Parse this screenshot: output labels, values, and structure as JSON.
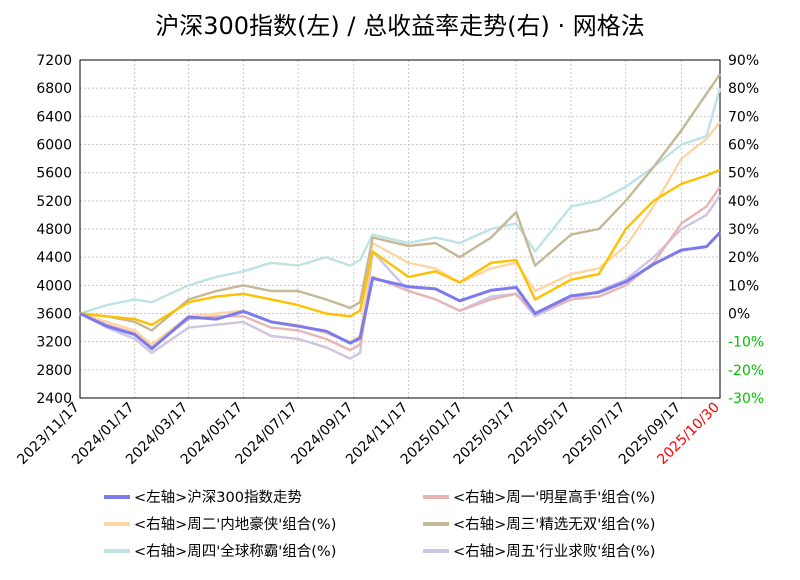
{
  "chart_data": {
    "type": "line",
    "title": "沪深300指数(左)  /  总收益率走势(右) · 网格法",
    "x_tick_labels": [
      "2023/11/17",
      "2024/01/17",
      "2024/03/17",
      "2024/05/17",
      "2024/07/17",
      "2024/09/17",
      "2024/11/17",
      "2025/01/17",
      "2025/03/17",
      "2025/05/17",
      "2025/07/17",
      "2025/09/17",
      "2025/10/30"
    ],
    "x_range": [
      "2023/11/17",
      "2025/10/30"
    ],
    "y_left": {
      "ticks": [
        "7200",
        "6800",
        "6400",
        "6000",
        "5600",
        "5200",
        "4800",
        "4400",
        "4000",
        "3600",
        "3200",
        "2800",
        "2400"
      ],
      "range": [
        2400,
        7200
      ]
    },
    "y_right": {
      "ticks": [
        "90%",
        "80%",
        "70%",
        "60%",
        "50%",
        "40%",
        "30%",
        "20%",
        "10%",
        "0%",
        "-10%",
        "-20%",
        "-30%"
      ],
      "range": [
        -30,
        90
      ],
      "negative_color": "#00c000"
    },
    "grid": "dotted",
    "last_date_color": "#ff0000",
    "series": [
      {
        "name": "<左轴>沪深300指数走势",
        "axis": "left",
        "color": "#7b7bef",
        "points": [
          [
            "2023/11/17",
            3600
          ],
          [
            "2023/12/17",
            3420
          ],
          [
            "2024/01/17",
            3300
          ],
          [
            "2024/02/05",
            3100
          ],
          [
            "2024/03/17",
            3550
          ],
          [
            "2024/04/17",
            3520
          ],
          [
            "2024/05/17",
            3630
          ],
          [
            "2024/06/17",
            3480
          ],
          [
            "2024/07/17",
            3420
          ],
          [
            "2024/08/17",
            3350
          ],
          [
            "2024/09/13",
            3180
          ],
          [
            "2024/09/24",
            3250
          ],
          [
            "2024/10/08",
            4100
          ],
          [
            "2024/11/17",
            3980
          ],
          [
            "2024/12/17",
            3950
          ],
          [
            "2025/01/13",
            3780
          ],
          [
            "2025/02/17",
            3930
          ],
          [
            "2025/03/17",
            3970
          ],
          [
            "2025/04/07",
            3600
          ],
          [
            "2025/05/17",
            3850
          ],
          [
            "2025/06/17",
            3900
          ],
          [
            "2025/07/17",
            4050
          ],
          [
            "2025/08/17",
            4300
          ],
          [
            "2025/09/17",
            4500
          ],
          [
            "2025/10/15",
            4550
          ],
          [
            "2025/10/30",
            4750
          ]
        ]
      },
      {
        "name": "<右轴>周一'明星高手'组合(%)",
        "axis": "right",
        "color": "#e8b4b4",
        "points": [
          [
            "2023/11/17",
            0
          ],
          [
            "2023/12/17",
            -4
          ],
          [
            "2024/01/17",
            -7
          ],
          [
            "2024/02/05",
            -12
          ],
          [
            "2024/03/17",
            -2
          ],
          [
            "2024/04/17",
            -1
          ],
          [
            "2024/05/17",
            -1
          ],
          [
            "2024/06/17",
            -5
          ],
          [
            "2024/07/17",
            -6
          ],
          [
            "2024/08/17",
            -9
          ],
          [
            "2024/09/13",
            -13
          ],
          [
            "2024/09/24",
            -11
          ],
          [
            "2024/10/08",
            13
          ],
          [
            "2024/11/17",
            8
          ],
          [
            "2024/12/17",
            5
          ],
          [
            "2025/01/13",
            1
          ],
          [
            "2025/02/17",
            5
          ],
          [
            "2025/03/17",
            7
          ],
          [
            "2025/04/07",
            0
          ],
          [
            "2025/05/17",
            5
          ],
          [
            "2025/06/17",
            6
          ],
          [
            "2025/07/17",
            10
          ],
          [
            "2025/08/17",
            18
          ],
          [
            "2025/09/17",
            32
          ],
          [
            "2025/10/15",
            38
          ],
          [
            "2025/10/30",
            45
          ]
        ]
      },
      {
        "name": "<右轴>周二'内地豪侠'组合(%)",
        "axis": "right",
        "color": "#fcd6a4",
        "points": [
          [
            "2023/11/17",
            0
          ],
          [
            "2023/12/17",
            -3
          ],
          [
            "2024/01/17",
            -6
          ],
          [
            "2024/02/05",
            -11
          ],
          [
            "2024/03/17",
            -1
          ],
          [
            "2024/04/17",
            0
          ],
          [
            "2024/05/17",
            1
          ],
          [
            "2024/06/17",
            -3
          ],
          [
            "2024/07/17",
            -4
          ],
          [
            "2024/08/17",
            -7
          ],
          [
            "2024/09/13",
            -10
          ],
          [
            "2024/09/24",
            -8
          ],
          [
            "2024/10/08",
            25
          ],
          [
            "2024/11/17",
            18
          ],
          [
            "2024/12/17",
            16
          ],
          [
            "2025/01/13",
            11
          ],
          [
            "2025/02/17",
            16
          ],
          [
            "2025/03/17",
            18
          ],
          [
            "2025/04/07",
            8
          ],
          [
            "2025/05/17",
            14
          ],
          [
            "2025/06/17",
            16
          ],
          [
            "2025/07/17",
            24
          ],
          [
            "2025/08/17",
            38
          ],
          [
            "2025/09/17",
            55
          ],
          [
            "2025/10/15",
            62
          ],
          [
            "2025/10/30",
            68
          ]
        ]
      },
      {
        "name": "<右轴>周三'精选无双'组合(%)",
        "axis": "right",
        "color": "#c4b896",
        "points": [
          [
            "2023/11/17",
            0
          ],
          [
            "2023/12/17",
            -1
          ],
          [
            "2024/01/17",
            -3
          ],
          [
            "2024/02/05",
            -6
          ],
          [
            "2024/03/17",
            5
          ],
          [
            "2024/04/17",
            8
          ],
          [
            "2024/05/17",
            10
          ],
          [
            "2024/06/17",
            8
          ],
          [
            "2024/07/17",
            8
          ],
          [
            "2024/08/17",
            5
          ],
          [
            "2024/09/13",
            2
          ],
          [
            "2024/09/24",
            4
          ],
          [
            "2024/10/08",
            27
          ],
          [
            "2024/11/17",
            24
          ],
          [
            "2024/12/17",
            25
          ],
          [
            "2025/01/13",
            20
          ],
          [
            "2025/02/17",
            27
          ],
          [
            "2025/03/17",
            36
          ],
          [
            "2025/04/07",
            17
          ],
          [
            "2025/05/17",
            28
          ],
          [
            "2025/06/17",
            30
          ],
          [
            "2025/07/17",
            40
          ],
          [
            "2025/08/17",
            52
          ],
          [
            "2025/09/17",
            65
          ],
          [
            "2025/10/15",
            78
          ],
          [
            "2025/10/30",
            85
          ]
        ]
      },
      {
        "name": "<右轴>周四'全球称霸'组合(%)",
        "axis": "right",
        "color": "#bde3e5",
        "points": [
          [
            "2023/11/17",
            0
          ],
          [
            "2023/12/17",
            3
          ],
          [
            "2024/01/17",
            5
          ],
          [
            "2024/02/05",
            4
          ],
          [
            "2024/03/17",
            10
          ],
          [
            "2024/04/17",
            13
          ],
          [
            "2024/05/17",
            15
          ],
          [
            "2024/06/17",
            18
          ],
          [
            "2024/07/17",
            17
          ],
          [
            "2024/08/17",
            20
          ],
          [
            "2024/09/13",
            17
          ],
          [
            "2024/09/24",
            19
          ],
          [
            "2024/10/08",
            28
          ],
          [
            "2024/11/17",
            25
          ],
          [
            "2024/12/17",
            27
          ],
          [
            "2025/01/13",
            25
          ],
          [
            "2025/02/17",
            30
          ],
          [
            "2025/03/17",
            32
          ],
          [
            "2025/04/07",
            22
          ],
          [
            "2025/05/17",
            38
          ],
          [
            "2025/06/17",
            40
          ],
          [
            "2025/07/17",
            45
          ],
          [
            "2025/08/17",
            52
          ],
          [
            "2025/09/17",
            60
          ],
          [
            "2025/10/15",
            63
          ],
          [
            "2025/10/30",
            80
          ]
        ]
      },
      {
        "name": "<右轴>周五'行业求败'组合(%)",
        "axis": "right",
        "color": "#cfc5e3",
        "points": [
          [
            "2023/11/17",
            0
          ],
          [
            "2023/12/17",
            -5
          ],
          [
            "2024/01/17",
            -9
          ],
          [
            "2024/02/05",
            -14
          ],
          [
            "2024/03/17",
            -5
          ],
          [
            "2024/04/17",
            -4
          ],
          [
            "2024/05/17",
            -3
          ],
          [
            "2024/06/17",
            -8
          ],
          [
            "2024/07/17",
            -9
          ],
          [
            "2024/08/17",
            -12
          ],
          [
            "2024/09/13",
            -16
          ],
          [
            "2024/09/24",
            -14
          ],
          [
            "2024/10/08",
            22
          ],
          [
            "2024/11/17",
            8
          ],
          [
            "2024/12/17",
            5
          ],
          [
            "2025/01/13",
            1
          ],
          [
            "2025/02/17",
            6
          ],
          [
            "2025/03/17",
            7
          ],
          [
            "2025/04/07",
            -1
          ],
          [
            "2025/05/17",
            5
          ],
          [
            "2025/06/17",
            8
          ],
          [
            "2025/07/17",
            12
          ],
          [
            "2025/08/17",
            20
          ],
          [
            "2025/09/17",
            30
          ],
          [
            "2025/10/15",
            35
          ],
          [
            "2025/10/30",
            42
          ]
        ]
      },
      {
        "name": "",
        "axis": "right",
        "color": "#ffc000",
        "points": [
          [
            "2023/11/17",
            0
          ],
          [
            "2023/12/17",
            -1
          ],
          [
            "2024/01/17",
            -2
          ],
          [
            "2024/02/05",
            -4
          ],
          [
            "2024/03/17",
            4
          ],
          [
            "2024/04/17",
            6
          ],
          [
            "2024/05/17",
            7
          ],
          [
            "2024/06/17",
            5
          ],
          [
            "2024/07/17",
            3
          ],
          [
            "2024/08/17",
            0
          ],
          [
            "2024/09/13",
            -1
          ],
          [
            "2024/09/24",
            1
          ],
          [
            "2024/10/08",
            22
          ],
          [
            "2024/11/17",
            13
          ],
          [
            "2024/12/17",
            15
          ],
          [
            "2025/01/13",
            11
          ],
          [
            "2025/02/17",
            18
          ],
          [
            "2025/03/17",
            19
          ],
          [
            "2025/04/07",
            5
          ],
          [
            "2025/05/17",
            12
          ],
          [
            "2025/06/17",
            14
          ],
          [
            "2025/07/17",
            30
          ],
          [
            "2025/08/17",
            40
          ],
          [
            "2025/09/17",
            46
          ],
          [
            "2025/10/15",
            49
          ],
          [
            "2025/10/30",
            51
          ]
        ]
      }
    ]
  }
}
